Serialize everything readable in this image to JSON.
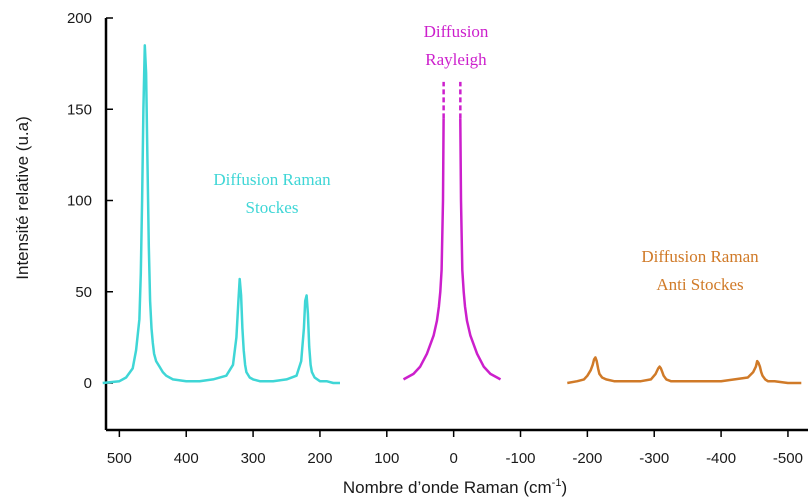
{
  "chart_data": {
    "type": "line",
    "title": "",
    "xlabel": "Nombre d’onde Raman (cm",
    "xlabel_superscript": "-1",
    "xlabel_suffix": ")",
    "ylabel": "Intensité relative (u.a)",
    "xlim": [
      520,
      -530
    ],
    "ylim": [
      0,
      200
    ],
    "x_ticks": [
      500,
      400,
      300,
      200,
      100,
      0,
      -100,
      -200,
      -300,
      -400,
      -500
    ],
    "x_tick_labels": [
      "500",
      "400",
      "300",
      "200",
      "100",
      "0",
      "-100",
      "-200",
      "-300",
      "-400",
      "-500"
    ],
    "y_ticks": [
      0,
      50,
      100,
      150,
      200
    ],
    "y_tick_labels": [
      "0",
      "50",
      "100",
      "150",
      "200"
    ],
    "grid": false,
    "legend": "none",
    "series": [
      {
        "color": "#3fd6d6",
        "label_lines": [
          "Diffusion Raman",
          "Stockes"
        ],
        "x": [
          525,
          500,
          490,
          480,
          475,
          470,
          468,
          466,
          464,
          462,
          460,
          458,
          456,
          454,
          452,
          450,
          448,
          445,
          440,
          435,
          430,
          420,
          400,
          380,
          360,
          340,
          330,
          325,
          322,
          320,
          318,
          316,
          314,
          312,
          310,
          305,
          300,
          290,
          270,
          250,
          235,
          228,
          224,
          222,
          220,
          218,
          216,
          214,
          212,
          208,
          200,
          190,
          180,
          170
        ],
        "y": [
          0,
          1,
          3,
          8,
          18,
          35,
          60,
          100,
          150,
          185,
          170,
          120,
          75,
          45,
          30,
          22,
          16,
          12,
          9,
          6,
          4,
          2,
          1,
          1,
          2,
          4,
          10,
          25,
          45,
          57,
          48,
          30,
          18,
          10,
          6,
          3,
          2,
          1,
          1,
          2,
          4,
          12,
          30,
          45,
          48,
          38,
          20,
          10,
          6,
          3,
          1,
          1,
          0,
          0
        ]
      },
      {
        "color": "#cc1fcc",
        "label_lines": [
          "Diffusion",
          "Rayleigh"
        ],
        "left_branch": {
          "x": [
            75,
            60,
            50,
            40,
            30,
            25,
            22,
            20,
            18,
            16,
            15
          ],
          "y": [
            2,
            5,
            9,
            16,
            26,
            34,
            42,
            50,
            62,
            100,
            145
          ]
        },
        "right_branch": {
          "x": [
            -10,
            -11,
            -13,
            -15,
            -17,
            -20,
            -25,
            -35,
            -45,
            -55,
            -70
          ],
          "y": [
            145,
            100,
            62,
            50,
            42,
            34,
            26,
            16,
            9,
            5,
            2
          ]
        },
        "cut_off": 145,
        "broken_extension_to": 165
      },
      {
        "color": "#d07a28",
        "label_lines": [
          "Diffusion Raman",
          "Anti Stockes"
        ],
        "x": [
          -170,
          -185,
          -195,
          -200,
          -205,
          -208,
          -210,
          -212,
          -214,
          -216,
          -218,
          -222,
          -228,
          -240,
          -260,
          -280,
          -295,
          -302,
          -306,
          -308,
          -310,
          -312,
          -314,
          -318,
          -325,
          -340,
          -360,
          -380,
          -400,
          -420,
          -440,
          -448,
          -452,
          -454,
          -456,
          -458,
          -460,
          -462,
          -466,
          -470,
          -480,
          -500,
          -520
        ],
        "y": [
          0,
          1,
          2,
          4,
          7,
          10,
          13,
          14,
          12,
          8,
          5,
          3,
          2,
          1,
          1,
          1,
          2,
          5,
          8,
          9,
          8,
          6,
          4,
          2,
          1,
          1,
          1,
          1,
          1,
          2,
          3,
          6,
          9,
          12,
          11,
          9,
          6,
          4,
          2,
          1,
          1,
          0,
          0
        ]
      }
    ]
  }
}
